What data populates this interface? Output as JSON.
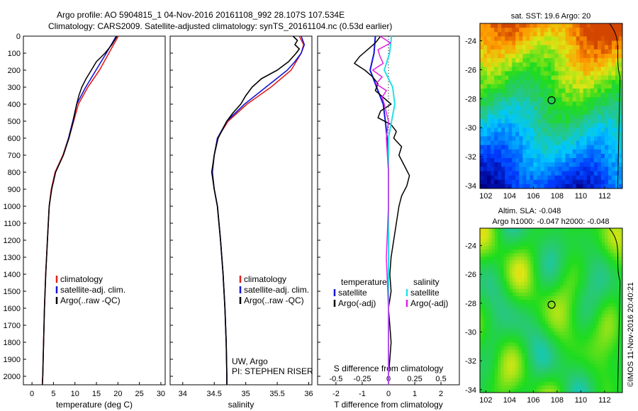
{
  "figure": {
    "title_line1": "Argo profile: AO 5904815_1 04-Nov-2016 20161108_992 28.107S 107.534E",
    "title_line2": "Climatology: CARS2009. Satellite-adjusted climatology: synTS_20161104.nc (0.53d earlier)",
    "credit": "©IMOS 11-Nov-2016 20:40:21"
  },
  "colors": {
    "climatology": "#e0201c",
    "satellite": "#1515d8",
    "argo": "#000000",
    "sal_satellite": "#22e0e8",
    "sal_argo": "#e020e0"
  },
  "chart_data": [
    {
      "type": "line",
      "xlabel": "temperature (deg C)",
      "ylabel": "",
      "xlim": [
        -2,
        31
      ],
      "ylim": [
        2050,
        0
      ],
      "xticks": [
        "0",
        "5",
        "10",
        "15",
        "20",
        "25",
        "30"
      ],
      "yticks": [
        "0",
        "100",
        "200",
        "300",
        "400",
        "500",
        "600",
        "700",
        "800",
        "900",
        "1000",
        "1100",
        "1200",
        "1300",
        "1400",
        "1500",
        "1600",
        "1700",
        "1800",
        "1900",
        "2000"
      ],
      "legend": [
        "climatology",
        "satellite-adj. clim.",
        "Argo(..raw -QC)"
      ],
      "legend_loc": "lower-center",
      "series": [
        {
          "name": "climatology",
          "depth": [
            0,
            100,
            200,
            300,
            400,
            500,
            600,
            700,
            800,
            900,
            1000,
            1200,
            1400,
            1600,
            1800,
            2000,
            2050
          ],
          "values": [
            20.1,
            17.9,
            15.7,
            13.0,
            10.8,
            9.7,
            8.6,
            7.2,
            5.4,
            4.5,
            4.0,
            3.6,
            3.2,
            2.9,
            2.7,
            2.5,
            2.4
          ]
        },
        {
          "name": "satellite-adj. clim.",
          "depth": [
            0,
            100,
            200,
            300,
            400,
            500,
            600,
            700,
            800,
            900,
            1000,
            1200,
            1400,
            1600,
            1800,
            2000,
            2050
          ],
          "values": [
            19.6,
            17.3,
            14.9,
            12.5,
            10.4,
            9.5,
            8.5,
            7.2,
            5.4,
            4.5,
            4.0,
            3.6,
            3.2,
            2.9,
            2.7,
            2.5,
            2.4
          ]
        },
        {
          "name": "Argo(..raw -QC)",
          "depth": [
            0,
            50,
            100,
            150,
            200,
            250,
            300,
            350,
            400,
            450,
            500,
            600,
            700,
            800,
            900,
            1000,
            1200,
            1400,
            1600,
            1800,
            2000,
            2050
          ],
          "values": [
            19.8,
            18.6,
            17.0,
            15.0,
            13.8,
            12.6,
            11.6,
            10.9,
            10.4,
            10.0,
            9.6,
            8.6,
            7.3,
            5.5,
            4.6,
            4.0,
            3.6,
            3.2,
            2.9,
            2.7,
            2.5,
            2.4
          ]
        }
      ]
    },
    {
      "type": "line",
      "xlabel": "salinity",
      "ylabel": "",
      "xlim": [
        33.8,
        36.05
      ],
      "ylim": [
        2050,
        0
      ],
      "xticks": [
        "34",
        "34.5",
        "35",
        "35.5",
        "36"
      ],
      "legend": [
        "climatology",
        "satellite-adj. clim.",
        "Argo(..raw -QC)"
      ],
      "legend_loc": "lower-center",
      "annotation_line1": "UW, Argo",
      "annotation_line2": "PI: STEPHEN RISER",
      "series": [
        {
          "name": "climatology",
          "depth": [
            0,
            50,
            100,
            150,
            200,
            300,
            400,
            500,
            600,
            700,
            800,
            900,
            1000,
            1200,
            1400,
            1600,
            1800,
            2000,
            2050
          ],
          "values": [
            35.85,
            35.92,
            35.88,
            35.8,
            35.72,
            35.4,
            35.02,
            34.72,
            34.55,
            34.5,
            34.47,
            34.5,
            34.55,
            34.6,
            34.64,
            34.67,
            34.69,
            34.7,
            34.7
          ]
        },
        {
          "name": "satellite-adj. clim.",
          "depth": [
            0,
            50,
            100,
            150,
            200,
            300,
            400,
            500,
            600,
            700,
            800,
            900,
            1000,
            1200,
            1400,
            1600,
            1800,
            2000,
            2050
          ],
          "values": [
            35.88,
            35.93,
            35.88,
            35.78,
            35.66,
            35.32,
            34.98,
            34.7,
            34.55,
            34.5,
            34.47,
            34.5,
            34.55,
            34.6,
            34.64,
            34.67,
            34.69,
            34.7,
            34.7
          ]
        },
        {
          "name": "Argo(..raw -QC)",
          "depth": [
            0,
            25,
            50,
            75,
            100,
            150,
            200,
            250,
            300,
            350,
            400,
            450,
            500,
            600,
            700,
            800,
            900,
            1000,
            1200,
            1400,
            1600,
            1800,
            2000,
            2050
          ],
          "values": [
            35.75,
            35.82,
            35.78,
            35.85,
            35.8,
            35.68,
            35.5,
            35.25,
            35.1,
            35.0,
            34.92,
            34.8,
            34.7,
            34.56,
            34.5,
            34.46,
            34.5,
            34.55,
            34.6,
            34.64,
            34.67,
            34.69,
            34.7,
            34.7
          ]
        }
      ]
    },
    {
      "type": "line",
      "xlabel": "T difference from climatology",
      "x2label": "S difference from climatology",
      "xlim": [
        -2.7,
        2.7
      ],
      "x2lim": [
        -0.675,
        0.675
      ],
      "ylim": [
        2050,
        0
      ],
      "xticks": [
        "-2",
        "-1",
        "0",
        "1",
        "2"
      ],
      "x2ticks": [
        "-0.5",
        "-0.25",
        "0",
        "0.25",
        "0.5"
      ],
      "legend_temperature_title": "temperature",
      "legend_salinity_title": "salinity",
      "legend_satellite": "satellite",
      "legend_argo": "Argo(-adj)",
      "legend_loc": "lower-center",
      "series": [
        {
          "name": "temperature satellite",
          "depth": [
            0,
            100,
            200,
            300,
            400,
            500,
            600,
            700,
            800,
            1000,
            1500,
            2000,
            2050
          ],
          "values": [
            -0.5,
            -0.55,
            -0.7,
            -0.45,
            -0.2,
            -0.12,
            -0.05,
            0,
            0,
            0,
            0,
            0,
            0
          ]
        },
        {
          "name": "temperature Argo(-adj)",
          "depth": [
            0,
            40,
            80,
            120,
            160,
            200,
            240,
            280,
            320,
            360,
            400,
            440,
            480,
            520,
            560,
            600,
            650,
            700,
            760,
            820,
            880,
            940,
            1000,
            1100,
            1200,
            1300,
            1400,
            1500,
            1600,
            1700,
            1800,
            1900,
            2000,
            2050
          ],
          "values": [
            -0.3,
            -0.5,
            -0.8,
            -1.1,
            -1.3,
            -0.9,
            -0.6,
            -0.4,
            -0.5,
            -0.2,
            0.1,
            -0.3,
            -0.4,
            0.1,
            0.3,
            0.2,
            0.5,
            0.4,
            0.6,
            0.8,
            0.7,
            0.5,
            0.4,
            0.3,
            0.2,
            0.1,
            0.05,
            0.1,
            0,
            0.05,
            0.1,
            0.05,
            0,
            0
          ]
        },
        {
          "name": "salinity satellite",
          "depth": [
            0,
            100,
            200,
            300,
            400,
            500,
            600,
            800,
            1000,
            1500,
            2000,
            2050
          ],
          "values": [
            0.03,
            0.01,
            -0.04,
            0.04,
            0.06,
            0.03,
            0,
            0,
            0,
            0,
            0,
            0
          ]
        },
        {
          "name": "salinity Argo(-adj)",
          "depth": [
            0,
            40,
            80,
            120,
            160,
            200,
            240,
            280,
            320,
            360,
            400,
            450,
            500,
            600,
            800,
            1000,
            1300,
            1600,
            2000,
            2050
          ],
          "values": [
            -0.08,
            0.02,
            -0.1,
            -0.08,
            -0.05,
            -0.15,
            -0.06,
            -0.12,
            -0.02,
            -0.06,
            -0.04,
            -0.02,
            0,
            -0.02,
            0,
            0,
            -0.02,
            0,
            0,
            0
          ]
        }
      ]
    },
    {
      "type": "heatmap",
      "title": "sat. SST: 19.6  Argo: 20",
      "xlim": [
        101.5,
        113.5
      ],
      "ylim": [
        -34.2,
        -22.8
      ],
      "xticks": [
        "102",
        "104",
        "106",
        "108",
        "110",
        "112"
      ],
      "yticks": [
        "-24",
        "-26",
        "-28",
        "-30",
        "-32",
        "-34"
      ],
      "marker": {
        "lon": 107.534,
        "lat": -28.107
      }
    },
    {
      "type": "heatmap",
      "title_line1": "Altim. SLA: -0.048",
      "title_line2": "Argo h1000: -0.047 h2000: -0.048",
      "xlim": [
        101.5,
        113.5
      ],
      "ylim": [
        -34.2,
        -22.8
      ],
      "xticks": [
        "102",
        "104",
        "106",
        "108",
        "110",
        "112"
      ],
      "yticks": [
        "-24",
        "-26",
        "-28",
        "-30",
        "-32",
        "-34"
      ],
      "marker": {
        "lon": 107.534,
        "lat": -28.107
      }
    }
  ]
}
